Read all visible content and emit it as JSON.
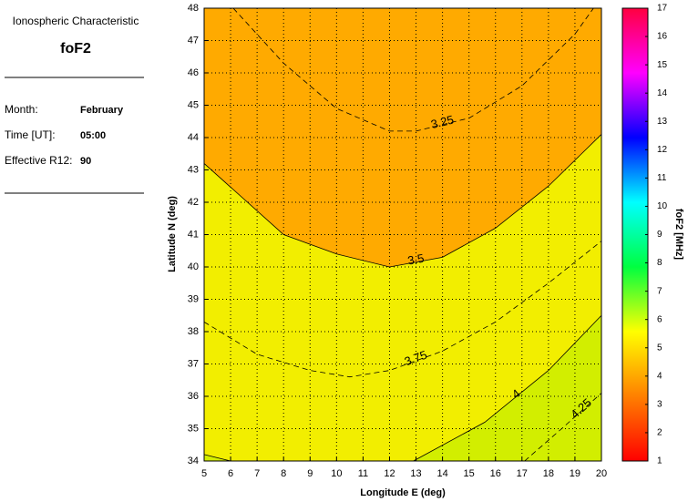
{
  "panel": {
    "heading": "Ionospheric Characteristic",
    "parameter": "foF2",
    "rows": [
      {
        "label": "Month:",
        "value": "February"
      },
      {
        "label": "Time [UT]:",
        "value": "05:00"
      },
      {
        "label": "Effective R12:",
        "value": "90"
      }
    ]
  },
  "chart_data": {
    "type": "contour",
    "xlabel": "Longitude E (deg)",
    "ylabel": "Latitude N (deg)",
    "xlim": [
      5,
      20
    ],
    "ylim": [
      34,
      48
    ],
    "xticks": [
      5,
      6,
      7,
      8,
      9,
      10,
      11,
      12,
      13,
      14,
      15,
      16,
      17,
      18,
      19,
      20
    ],
    "yticks": [
      34,
      35,
      36,
      37,
      38,
      39,
      40,
      41,
      42,
      43,
      44,
      45,
      46,
      47,
      48
    ],
    "grid": true,
    "region_colors": [
      "#ffaa00",
      "#f2ee00",
      "#d2ee00"
    ],
    "contours": [
      {
        "level": 3.25,
        "style": "dashed",
        "x": [
          6.1,
          8,
          10,
          12,
          13,
          15,
          17,
          19,
          19.7
        ],
        "y": [
          48,
          46.3,
          44.9,
          44.2,
          44.2,
          44.6,
          45.6,
          47.2,
          48
        ]
      },
      {
        "level": 3.5,
        "style": "solid",
        "x": [
          5,
          8,
          10,
          12,
          14,
          16,
          18,
          20
        ],
        "y": [
          43.2,
          41,
          40.4,
          40,
          40.3,
          41.2,
          42.5,
          44.1
        ]
      },
      {
        "level": 3.75,
        "style": "dashed",
        "x": [
          5,
          7,
          9,
          10.5,
          12,
          14,
          16,
          18,
          20
        ],
        "y": [
          38.3,
          37.3,
          36.8,
          36.6,
          36.8,
          37.4,
          38.3,
          39.5,
          40.8
        ]
      },
      {
        "level": 4,
        "style": "solid",
        "x": [
          5,
          6,
          null,
          12.9,
          15.6,
          18,
          20
        ],
        "y": [
          34.2,
          34,
          null,
          34,
          35.2,
          36.8,
          38.5
        ]
      },
      {
        "level": 4.25,
        "style": "dashed",
        "x": [
          17.1,
          18.5,
          20
        ],
        "y": [
          34,
          35,
          36.1
        ]
      }
    ],
    "colorbar": {
      "label": "foF2 [MHz]",
      "clim": [
        1,
        17
      ],
      "ticks": [
        1,
        2,
        3,
        4,
        5,
        6,
        7,
        8,
        9,
        10,
        11,
        12,
        13,
        14,
        15,
        16,
        17
      ],
      "colormap": [
        "#ff0000",
        "#ff8000",
        "#ffff00",
        "#00ff40",
        "#00ffff",
        "#0000ff",
        "#ff00ff",
        "#ff0040"
      ]
    }
  }
}
